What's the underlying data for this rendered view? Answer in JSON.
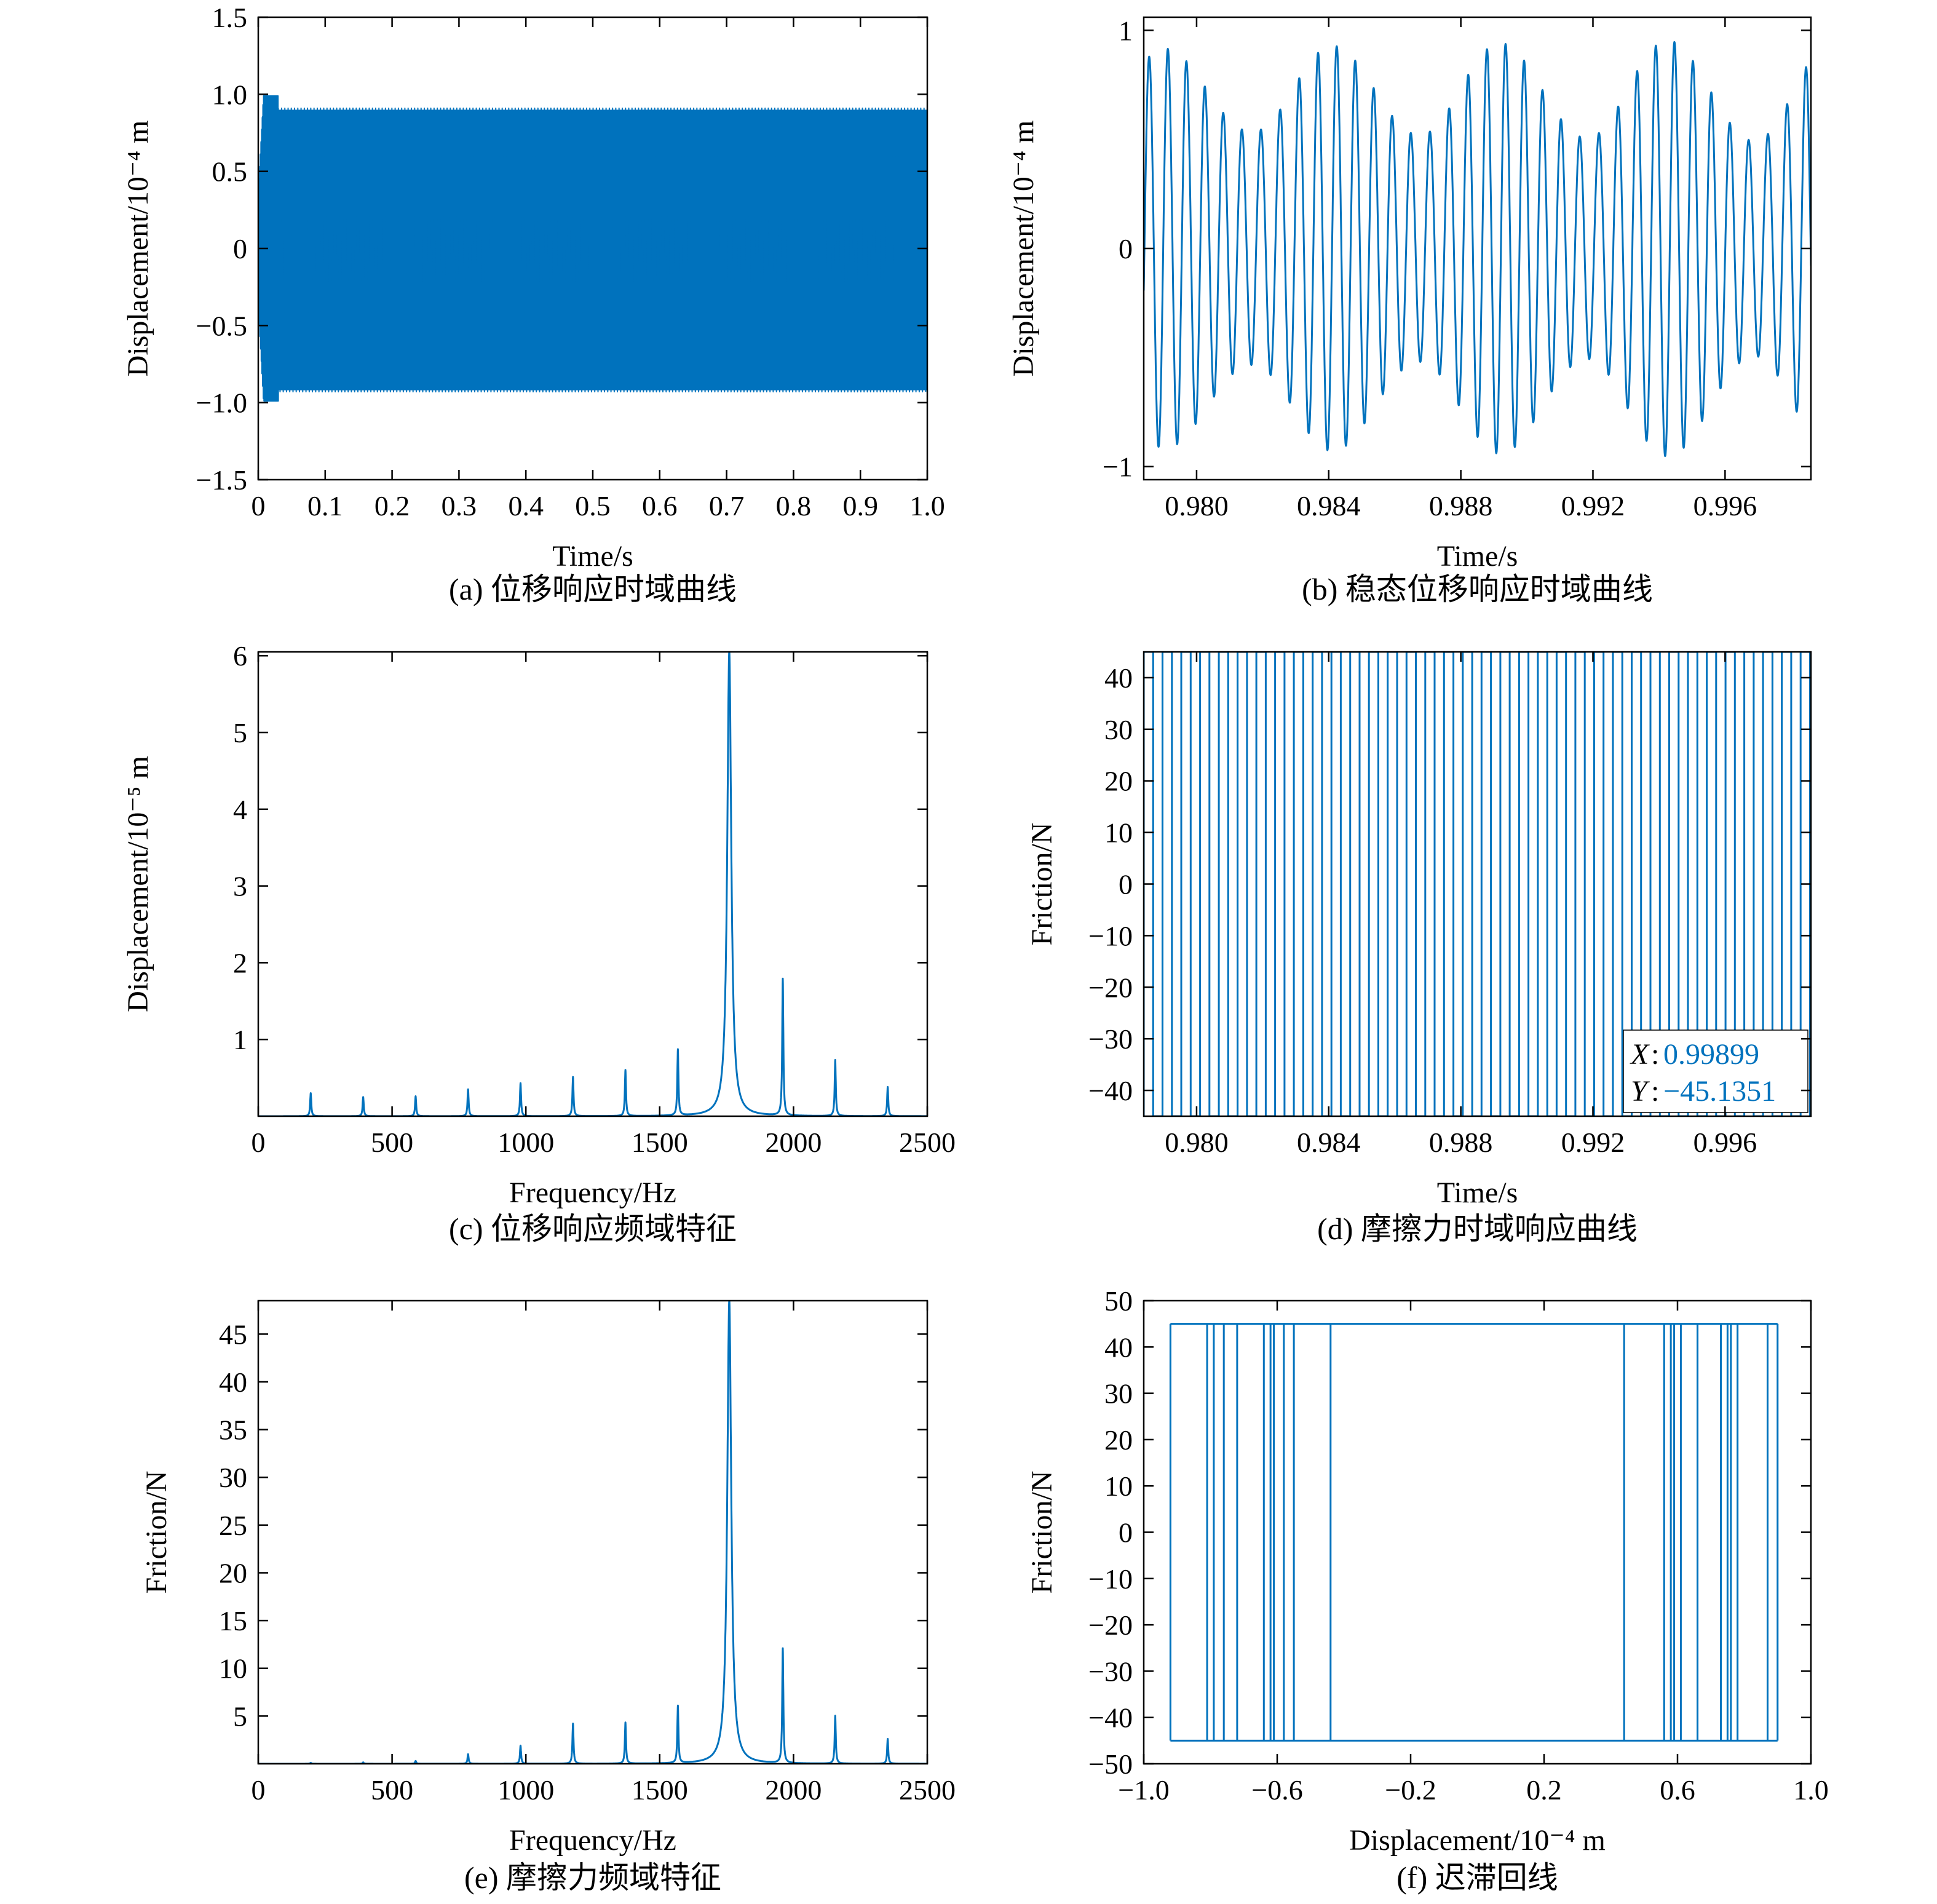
{
  "figure": {
    "line_color": "#0072BD",
    "axis_color": "#000000"
  },
  "chart_data": [
    {
      "id": "a",
      "type": "line",
      "caption": "(a) 位移响应时域曲线",
      "xlabel": "Time/s",
      "ylabel": "Displacement/10⁻⁴ m",
      "xlim": [
        0,
        1
      ],
      "ylim": [
        -1.5,
        1.5
      ],
      "xticks": [
        0,
        0.1,
        0.2,
        0.3,
        0.4,
        0.5,
        0.6,
        0.7,
        0.8,
        0.9,
        1.0
      ],
      "xtick_labels": [
        "0",
        "0.1",
        "0.2",
        "0.3",
        "0.4",
        "0.5",
        "0.6",
        "0.7",
        "0.8",
        "0.9",
        "1.0"
      ],
      "yticks": [
        -1.5,
        -1.0,
        -0.5,
        0,
        0.5,
        1.0,
        1.5
      ],
      "ytick_labels": [
        "−1.5",
        "−1.0",
        "−0.5",
        "0",
        "0.5",
        "1.0",
        "1.5"
      ],
      "description_values": {
        "steady_envelope_max": 0.9,
        "steady_envelope_min": -0.92,
        "transient_peak_max": 1.04,
        "transient_peak_min": -1.06,
        "transient_end_time": 0.03,
        "dominant_frequency_hz": 1760,
        "beat_frequency_hz": 196
      }
    },
    {
      "id": "b",
      "type": "line",
      "caption": "(b) 稳态位移响应时域曲线",
      "xlabel": "Time/s",
      "ylabel": "Displacement/10⁻⁴ m",
      "xlim": [
        0.9784,
        0.9986
      ],
      "ylim": [
        -1.06,
        1.06
      ],
      "xticks": [
        0.98,
        0.984,
        0.988,
        0.992,
        0.996
      ],
      "xtick_labels": [
        "0.980",
        "0.984",
        "0.988",
        "0.992",
        "0.996"
      ],
      "yticks": [
        -1,
        0,
        1
      ],
      "ytick_labels": [
        "−1",
        "0",
        "1"
      ],
      "description_values": {
        "carrier_frequency_hz": 1760,
        "beat_period_s": 0.0051,
        "max_peak": 0.89,
        "min_peak_amplitude": 0.44
      }
    },
    {
      "id": "c",
      "type": "line",
      "caption": "(c) 位移响应频域特征",
      "xlabel": "Frequency/Hz",
      "ylabel": "Displacement/10⁻⁵ m",
      "xlim": [
        0,
        2500
      ],
      "ylim": [
        0,
        6.05
      ],
      "xticks": [
        0,
        500,
        1000,
        1500,
        2000,
        2500
      ],
      "xtick_labels": [
        "0",
        "500",
        "1000",
        "1500",
        "2000",
        "2500"
      ],
      "yticks": [
        1,
        2,
        3,
        4,
        5,
        6
      ],
      "ytick_labels": [
        "1",
        "2",
        "3",
        "4",
        "5",
        "6"
      ],
      "peaks": [
        {
          "f": 196,
          "a": 0.3
        },
        {
          "f": 392,
          "a": 0.25
        },
        {
          "f": 588,
          "a": 0.26
        },
        {
          "f": 784,
          "a": 0.35
        },
        {
          "f": 980,
          "a": 0.43
        },
        {
          "f": 1176,
          "a": 0.51
        },
        {
          "f": 1372,
          "a": 0.6
        },
        {
          "f": 1568,
          "a": 0.86
        },
        {
          "f": 1760,
          "a": 6.05
        },
        {
          "f": 1960,
          "a": 1.78
        },
        {
          "f": 2156,
          "a": 0.73
        },
        {
          "f": 2352,
          "a": 0.38
        }
      ]
    },
    {
      "id": "d",
      "type": "line",
      "caption": "(d) 摩擦力时域响应曲线",
      "xlabel": "Time/s",
      "ylabel": "Friction/N",
      "xlim": [
        0.9784,
        0.9986
      ],
      "ylim": [
        -45,
        45
      ],
      "xticks": [
        0.98,
        0.984,
        0.988,
        0.992,
        0.996
      ],
      "xtick_labels": [
        "0.980",
        "0.984",
        "0.988",
        "0.992",
        "0.996"
      ],
      "yticks": [
        -40,
        -30,
        -20,
        -10,
        0,
        10,
        20,
        30,
        40
      ],
      "ytick_labels": [
        "−40",
        "−30",
        "−20",
        "−10",
        "0",
        "10",
        "20",
        "30",
        "40"
      ],
      "friction_amplitude": 45,
      "switch_frequency_hz": 1760,
      "datatip": {
        "x_label": "X",
        "x_value": "0.99899",
        "y_label": "Y",
        "y_value": "−45.1351"
      }
    },
    {
      "id": "e",
      "type": "line",
      "caption": "(e) 摩擦力频域特征",
      "xlabel": "Frequency/Hz",
      "ylabel": "Friction/N",
      "xlim": [
        0,
        2500
      ],
      "ylim": [
        0,
        48.5
      ],
      "xticks": [
        0,
        500,
        1000,
        1500,
        2000,
        2500
      ],
      "xtick_labels": [
        "0",
        "500",
        "1000",
        "1500",
        "2000",
        "2500"
      ],
      "yticks": [
        5,
        10,
        15,
        20,
        25,
        30,
        35,
        40,
        45
      ],
      "ytick_labels": [
        "5",
        "10",
        "15",
        "20",
        "25",
        "30",
        "35",
        "40",
        "45"
      ],
      "peaks": [
        {
          "f": 196,
          "a": 0.1
        },
        {
          "f": 392,
          "a": 0.15
        },
        {
          "f": 588,
          "a": 0.3
        },
        {
          "f": 784,
          "a": 1.0
        },
        {
          "f": 980,
          "a": 1.9
        },
        {
          "f": 1176,
          "a": 4.2
        },
        {
          "f": 1372,
          "a": 4.3
        },
        {
          "f": 1568,
          "a": 6.0
        },
        {
          "f": 1760,
          "a": 48.5
        },
        {
          "f": 1960,
          "a": 12.0
        },
        {
          "f": 2156,
          "a": 5.0
        },
        {
          "f": 2352,
          "a": 2.6
        }
      ]
    },
    {
      "id": "f",
      "type": "line",
      "caption": "(f) 迟滞回线",
      "xlabel": "Displacement/10⁻⁴ m",
      "ylabel": "Friction/N",
      "xlim": [
        -1.0,
        1.0
      ],
      "ylim": [
        -50,
        50
      ],
      "xticks": [
        -1.0,
        -0.6,
        -0.2,
        0.2,
        0.6,
        1.0
      ],
      "xtick_labels": [
        "−1.0",
        "−0.6",
        "−0.2",
        "0.2",
        "0.6",
        "1.0"
      ],
      "yticks": [
        -50,
        -40,
        -30,
        -20,
        -10,
        0,
        10,
        20,
        30,
        40,
        50
      ],
      "ytick_labels": [
        "−50",
        "−40",
        "−30",
        "−20",
        "−10",
        "0",
        "10",
        "20",
        "30",
        "40",
        "50"
      ],
      "friction_level": 45,
      "loop_x_extent": [
        -0.92,
        0.9
      ],
      "switch_displacements": [
        -0.92,
        -0.81,
        -0.79,
        -0.76,
        -0.72,
        -0.64,
        -0.62,
        -0.61,
        -0.58,
        -0.55,
        -0.44,
        0.44,
        0.56,
        0.58,
        0.59,
        0.61,
        0.66,
        0.73,
        0.75,
        0.76,
        0.78,
        0.87,
        0.9
      ]
    }
  ]
}
